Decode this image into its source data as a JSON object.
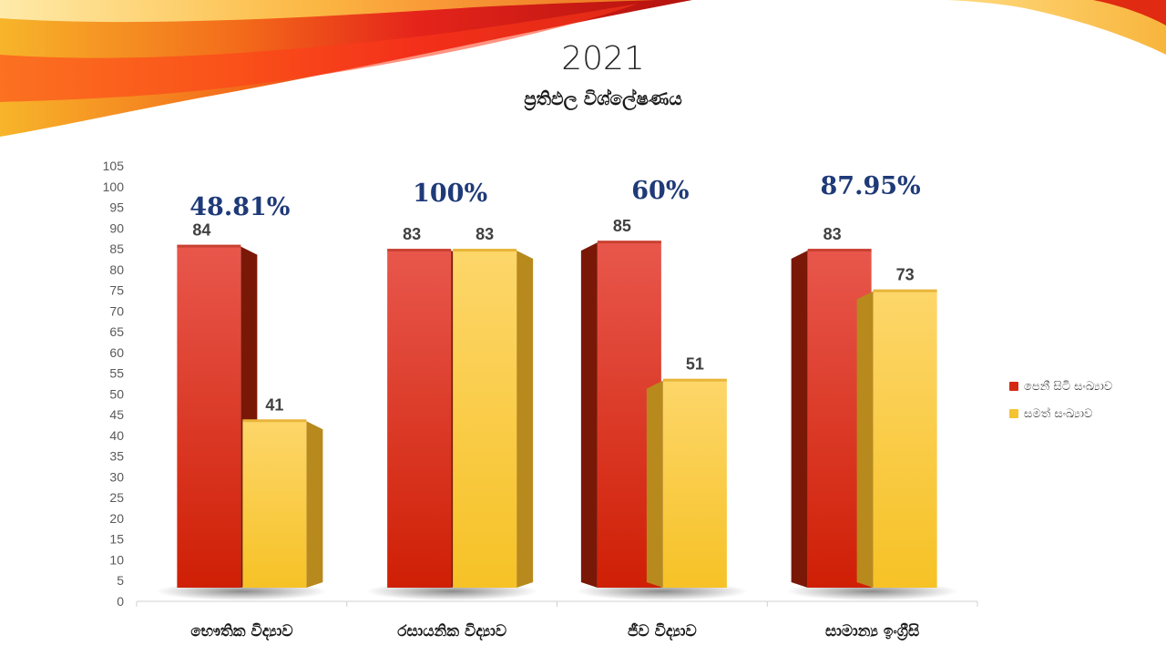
{
  "slide": {
    "title": "2021",
    "subtitle": "ප්‍රතිඵල විශ්ලේෂණය"
  },
  "colors": {
    "series_red": "#d42a12",
    "series_yellow": "#f5c232",
    "percent_text": "#1f3a78"
  },
  "chart_data": {
    "type": "bar",
    "categories": [
      "භෞතික විද්‍යාව",
      "රසායනික විද්‍යාව",
      "ජීව විද්‍යාව",
      "සාමාන්‍ය ඉංග්‍රීසි"
    ],
    "series": [
      {
        "name": "පෙනී සිටි සංඛ්‍යාව",
        "values": [
          84,
          83,
          85,
          83
        ]
      },
      {
        "name": "සමත් සංඛ්‍යාව",
        "values": [
          41,
          83,
          51,
          73
        ]
      }
    ],
    "annotations": [
      "48.81%",
      "100%",
      "60%",
      "87.95%"
    ],
    "ylim": [
      0,
      105
    ],
    "yticks": [
      0,
      5,
      10,
      15,
      20,
      25,
      30,
      35,
      40,
      45,
      50,
      55,
      60,
      65,
      70,
      75,
      80,
      85,
      90,
      95,
      100,
      105
    ],
    "grid": false,
    "legend_position": "right",
    "bar_style": "3d"
  }
}
